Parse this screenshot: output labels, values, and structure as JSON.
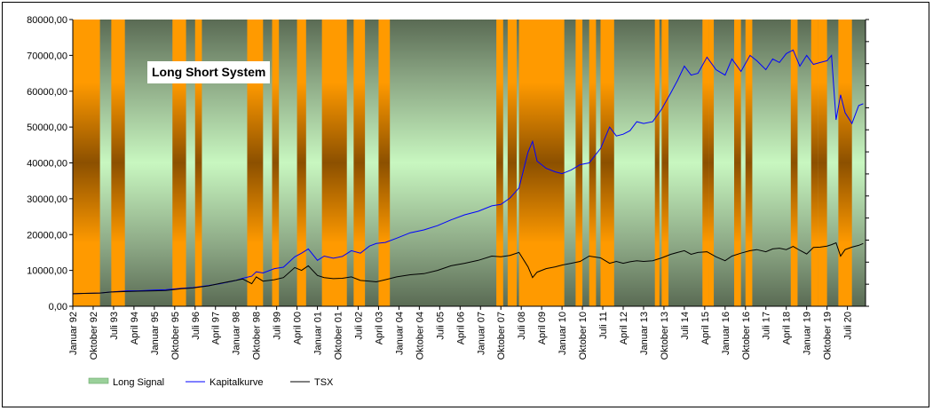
{
  "chart_data": {
    "type": "line",
    "title": "Long Short System",
    "xlabel": "",
    "ylabel": "",
    "ylim": [
      0,
      80000
    ],
    "xlim": [
      "1992-01",
      "2021-03"
    ],
    "grid": false,
    "legend_position": "bottom-left",
    "y_ticks": [
      "0,00",
      "10000,00",
      "20000,00",
      "30000,00",
      "40000,00",
      "50000,00",
      "60000,00",
      "70000,00",
      "80000,00"
    ],
    "y_tick_values": [
      0,
      10000,
      20000,
      30000,
      40000,
      50000,
      60000,
      70000,
      80000
    ],
    "x_ticks": [
      {
        "label": "Januar 92",
        "date": "1992-01"
      },
      {
        "label": "Oktober 92",
        "date": "1992-10"
      },
      {
        "label": "Juli 93",
        "date": "1993-07"
      },
      {
        "label": "April 94",
        "date": "1994-04"
      },
      {
        "label": "Januar 95",
        "date": "1995-01"
      },
      {
        "label": "Oktober 95",
        "date": "1995-10"
      },
      {
        "label": "Juli 96",
        "date": "1996-07"
      },
      {
        "label": "April 97",
        "date": "1997-04"
      },
      {
        "label": "Januar 98",
        "date": "1998-01"
      },
      {
        "label": "Oktober 98",
        "date": "1998-10"
      },
      {
        "label": "Juli 99",
        "date": "1999-07"
      },
      {
        "label": "April 00",
        "date": "2000-04"
      },
      {
        "label": "Januar 01",
        "date": "2001-01"
      },
      {
        "label": "Oktober 01",
        "date": "2001-10"
      },
      {
        "label": "Juli 02",
        "date": "2002-07"
      },
      {
        "label": "April 03",
        "date": "2003-04"
      },
      {
        "label": "Januar 04",
        "date": "2004-01"
      },
      {
        "label": "Oktober 04",
        "date": "2004-10"
      },
      {
        "label": "Juli 05",
        "date": "2005-07"
      },
      {
        "label": "April 06",
        "date": "2006-04"
      },
      {
        "label": "Januar 07",
        "date": "2007-01"
      },
      {
        "label": "Oktober 07",
        "date": "2007-10"
      },
      {
        "label": "Juli 08",
        "date": "2008-07"
      },
      {
        "label": "April 09",
        "date": "2009-04"
      },
      {
        "label": "Januar 10",
        "date": "2010-01"
      },
      {
        "label": "Oktober 10",
        "date": "2010-10"
      },
      {
        "label": "Juli 11",
        "date": "2011-07"
      },
      {
        "label": "April 12",
        "date": "2012-04"
      },
      {
        "label": "Januar 13",
        "date": "2013-01"
      },
      {
        "label": "Oktober 13",
        "date": "2013-10"
      },
      {
        "label": "Juli 14",
        "date": "2014-07"
      },
      {
        "label": "April 15",
        "date": "2015-04"
      },
      {
        "label": "Januar 16",
        "date": "2016-01"
      },
      {
        "label": "Oktober 16",
        "date": "2016-10"
      },
      {
        "label": "Juli 17",
        "date": "2017-07"
      },
      {
        "label": "April 18",
        "date": "2018-04"
      },
      {
        "label": "Januar 19",
        "date": "2019-01"
      },
      {
        "label": "Oktober 19",
        "date": "2019-10"
      },
      {
        "label": "Juli 20",
        "date": "2020-07"
      }
    ],
    "long_signal_periods": [
      [
        "1992-01",
        "1992-12"
      ],
      [
        "1993-06",
        "1993-11"
      ],
      [
        "1995-09",
        "1996-02"
      ],
      [
        "1996-07",
        "1996-09"
      ],
      [
        "1998-06",
        "1998-12"
      ],
      [
        "1999-05",
        "1999-07"
      ],
      [
        "2000-04",
        "2000-07"
      ],
      [
        "2001-03",
        "2002-01"
      ],
      [
        "2002-05",
        "2002-09"
      ],
      [
        "2003-04",
        "2003-08"
      ],
      [
        "2007-08",
        "2007-10"
      ],
      [
        "2008-01",
        "2008-04"
      ],
      [
        "2008-06",
        "2010-01"
      ],
      [
        "2010-07",
        "2010-09"
      ],
      [
        "2011-01",
        "2011-03"
      ],
      [
        "2011-06",
        "2011-11"
      ],
      [
        "2013-06",
        "2013-07"
      ],
      [
        "2013-09",
        "2013-11"
      ],
      [
        "2015-03",
        "2015-05"
      ],
      [
        "2015-06",
        "2015-07"
      ],
      [
        "2016-05",
        "2016-07"
      ],
      [
        "2016-10",
        "2016-12"
      ],
      [
        "2018-06",
        "2018-08"
      ],
      [
        "2019-03",
        "2019-05"
      ],
      [
        "2019-06",
        "2019-09"
      ],
      [
        "2020-03",
        "2020-08"
      ]
    ],
    "series": [
      {
        "name": "Long Signal",
        "values": [],
        "color": "#ff9a00"
      },
      {
        "name": "Kapitalkurve",
        "color": "#0000ff",
        "x": [
          "1992-01",
          "1992-06",
          "1993-01",
          "1993-06",
          "1994-01",
          "1994-06",
          "1995-01",
          "1995-06",
          "1996-01",
          "1996-06",
          "1997-01",
          "1997-06",
          "1998-01",
          "1998-04",
          "1998-08",
          "1998-10",
          "1999-01",
          "1999-06",
          "1999-10",
          "2000-03",
          "2000-06",
          "2000-09",
          "2001-01",
          "2001-04",
          "2001-08",
          "2001-12",
          "2002-04",
          "2002-08",
          "2002-12",
          "2003-03",
          "2003-07",
          "2003-12",
          "2004-06",
          "2004-12",
          "2005-06",
          "2005-12",
          "2006-06",
          "2006-12",
          "2007-06",
          "2007-10",
          "2008-02",
          "2008-06",
          "2008-10",
          "2008-12",
          "2009-02",
          "2009-06",
          "2009-10",
          "2010-01",
          "2010-05",
          "2010-09",
          "2011-01",
          "2011-06",
          "2011-10",
          "2012-01",
          "2012-04",
          "2012-07",
          "2012-10",
          "2013-01",
          "2013-05",
          "2013-09",
          "2014-01",
          "2014-04",
          "2014-07",
          "2014-10",
          "2015-01",
          "2015-05",
          "2015-09",
          "2016-01",
          "2016-04",
          "2016-08",
          "2016-12",
          "2017-03",
          "2017-07",
          "2017-10",
          "2018-01",
          "2018-04",
          "2018-07",
          "2018-10",
          "2019-01",
          "2019-04",
          "2019-07",
          "2019-10",
          "2019-12",
          "2020-02",
          "2020-04",
          "2020-06",
          "2020-09",
          "2020-12",
          "2021-02"
        ],
        "values": [
          3500,
          3600,
          3700,
          4000,
          4300,
          4300,
          4500,
          4600,
          5000,
          5200,
          5800,
          6300,
          7200,
          7800,
          8400,
          9600,
          9300,
          10500,
          10900,
          13800,
          14800,
          16000,
          12800,
          14000,
          13400,
          13900,
          15500,
          14800,
          16800,
          17500,
          17800,
          19000,
          20500,
          21300,
          22500,
          24100,
          25500,
          26500,
          28000,
          28400,
          30200,
          33000,
          43000,
          46000,
          40500,
          38500,
          37500,
          37000,
          38000,
          39500,
          40000,
          44000,
          50000,
          47500,
          48000,
          49000,
          51500,
          51000,
          51500,
          55000,
          59500,
          63000,
          67000,
          64500,
          65000,
          69500,
          66000,
          64500,
          69000,
          65500,
          70000,
          68500,
          66000,
          69000,
          68000,
          70500,
          71500,
          67000,
          70000,
          67500,
          68000,
          68500,
          70000,
          52000,
          59000,
          54000,
          51000,
          56000,
          56500
        ]
      },
      {
        "name": "TSX",
        "color": "#000000",
        "x": [
          "1992-01",
          "1992-06",
          "1993-01",
          "1993-06",
          "1994-01",
          "1994-06",
          "1995-01",
          "1995-06",
          "1996-01",
          "1996-06",
          "1997-01",
          "1997-06",
          "1998-01",
          "1998-04",
          "1998-08",
          "1998-10",
          "1999-01",
          "1999-06",
          "1999-10",
          "2000-03",
          "2000-06",
          "2000-09",
          "2001-01",
          "2001-04",
          "2001-08",
          "2001-12",
          "2002-04",
          "2002-08",
          "2002-12",
          "2003-03",
          "2003-07",
          "2003-12",
          "2004-06",
          "2004-12",
          "2005-06",
          "2005-12",
          "2006-06",
          "2006-12",
          "2007-06",
          "2007-10",
          "2008-02",
          "2008-06",
          "2008-10",
          "2008-12",
          "2009-02",
          "2009-06",
          "2009-10",
          "2010-01",
          "2010-05",
          "2010-09",
          "2011-01",
          "2011-06",
          "2011-10",
          "2012-01",
          "2012-04",
          "2012-07",
          "2012-10",
          "2013-01",
          "2013-05",
          "2013-09",
          "2014-01",
          "2014-04",
          "2014-07",
          "2014-10",
          "2015-01",
          "2015-05",
          "2015-09",
          "2016-01",
          "2016-04",
          "2016-08",
          "2016-12",
          "2017-03",
          "2017-07",
          "2017-10",
          "2018-01",
          "2018-04",
          "2018-07",
          "2018-10",
          "2019-01",
          "2019-04",
          "2019-07",
          "2019-10",
          "2019-12",
          "2020-02",
          "2020-04",
          "2020-06",
          "2020-09",
          "2020-12",
          "2021-02"
        ],
        "values": [
          3500,
          3600,
          3700,
          4000,
          4100,
          4200,
          4300,
          4400,
          4900,
          5100,
          5700,
          6400,
          7200,
          7600,
          6300,
          8200,
          7000,
          7400,
          8000,
          10800,
          10000,
          11300,
          8600,
          8000,
          7700,
          7800,
          8200,
          7200,
          7000,
          6800,
          7400,
          8200,
          8800,
          9100,
          10000,
          11300,
          12000,
          12800,
          14000,
          13800,
          14200,
          15000,
          11000,
          8000,
          9500,
          10500,
          11000,
          11500,
          12000,
          12500,
          14000,
          13500,
          12000,
          12500,
          12000,
          12400,
          12700,
          12500,
          12700,
          13500,
          14500,
          15000,
          15500,
          14500,
          15000,
          15200,
          13800,
          12700,
          14000,
          14800,
          15500,
          15800,
          15200,
          16000,
          16200,
          15800,
          16700,
          15600,
          14600,
          16400,
          16500,
          16800,
          17200,
          17700,
          14000,
          15800,
          16500,
          17000,
          17500
        ]
      }
    ]
  },
  "legend": [
    {
      "name": "Long Signal",
      "kind": "area"
    },
    {
      "name": "Kapitalkurve",
      "kind": "line"
    },
    {
      "name": "TSX",
      "kind": "line"
    }
  ]
}
